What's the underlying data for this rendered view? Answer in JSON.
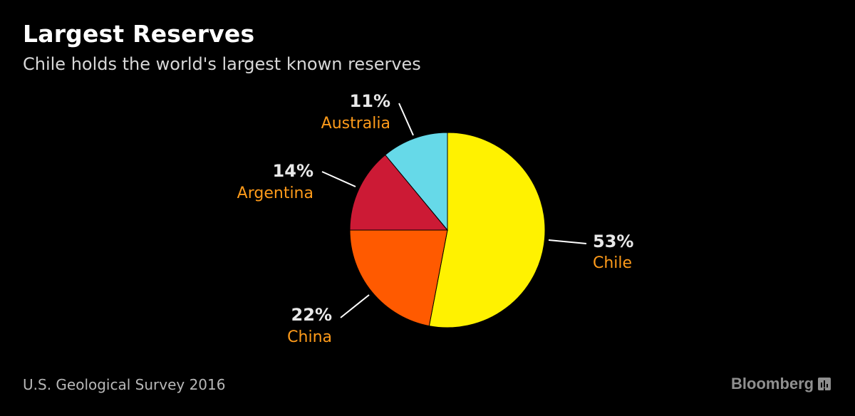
{
  "header": {
    "title": "Largest Reserves",
    "subtitle": "Chile holds the world's largest known reserves"
  },
  "footer": {
    "source": "U.S. Geological Survey 2016",
    "brand": "Bloomberg",
    "brand_icon": "bloomberg-terminal-icon"
  },
  "chart_data": {
    "type": "pie",
    "title": "Largest Reserves",
    "subtitle": "Chile holds the world's largest known reserves",
    "slices": [
      {
        "label": "Chile",
        "value": 53,
        "value_label": "53%",
        "color": "#FFF200"
      },
      {
        "label": "China",
        "value": 22,
        "value_label": "22%",
        "color": "#FF5A00"
      },
      {
        "label": "Argentina",
        "value": 14,
        "value_label": "14%",
        "color": "#CC1A35"
      },
      {
        "label": "Australia",
        "value": 11,
        "value_label": "11%",
        "color": "#66D9E8"
      }
    ],
    "label_color": "#FF9B1A",
    "start_angle_deg": 0,
    "direction": "clockwise",
    "legend": "none"
  }
}
